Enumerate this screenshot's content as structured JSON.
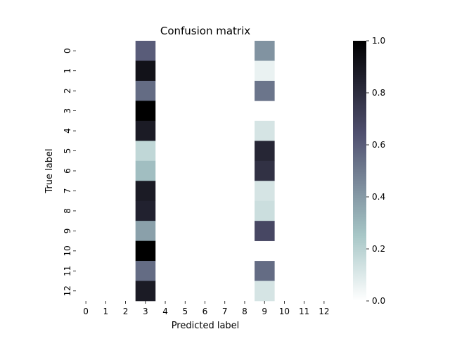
{
  "chart_data": {
    "type": "heatmap",
    "title": "Confusion matrix",
    "xlabel": "Predicted label",
    "ylabel": "True label",
    "x_tick_labels": [
      "0",
      "1",
      "2",
      "3",
      "4",
      "5",
      "6",
      "7",
      "8",
      "9",
      "10",
      "11",
      "12"
    ],
    "y_tick_labels": [
      "0",
      "1",
      "2",
      "3",
      "4",
      "5",
      "6",
      "7",
      "8",
      "9",
      "10",
      "11",
      "12"
    ],
    "values": [
      [
        0,
        0,
        0,
        0.6,
        0,
        0,
        0,
        0,
        0,
        0.42,
        0,
        0,
        0
      ],
      [
        0,
        0,
        0,
        0.92,
        0,
        0,
        0,
        0,
        0,
        0.06,
        0,
        0,
        0
      ],
      [
        0,
        0,
        0,
        0.55,
        0,
        0,
        0,
        0,
        0,
        0.52,
        0,
        0,
        0
      ],
      [
        0,
        0,
        0,
        1.0,
        0,
        0,
        0,
        0,
        0,
        0,
        0,
        0,
        0
      ],
      [
        0,
        0,
        0,
        0.88,
        0,
        0,
        0,
        0,
        0,
        0.12,
        0,
        0,
        0
      ],
      [
        0,
        0,
        0,
        0.18,
        0,
        0,
        0,
        0,
        0,
        0.83,
        0,
        0,
        0
      ],
      [
        0,
        0,
        0,
        0.28,
        0,
        0,
        0,
        0,
        0,
        0.78,
        0,
        0,
        0
      ],
      [
        0,
        0,
        0,
        0.88,
        0,
        0,
        0,
        0,
        0,
        0.12,
        0,
        0,
        0
      ],
      [
        0,
        0,
        0,
        0.85,
        0,
        0,
        0,
        0,
        0,
        0.15,
        0,
        0,
        0
      ],
      [
        0,
        0,
        0,
        0.38,
        0,
        0,
        0,
        0,
        0,
        0.68,
        0,
        0,
        0
      ],
      [
        0,
        0,
        0,
        1.0,
        0,
        0,
        0,
        0,
        0,
        0,
        0,
        0,
        0
      ],
      [
        0,
        0,
        0,
        0.55,
        0,
        0,
        0,
        0,
        0,
        0.55,
        0,
        0,
        0
      ],
      [
        0,
        0,
        0,
        0.88,
        0,
        0,
        0,
        0,
        0,
        0.12,
        0,
        0,
        0
      ]
    ],
    "colormap": "bone_r",
    "colorbar": {
      "range": [
        0.0,
        1.0
      ],
      "tick_values": [
        0.0,
        0.2,
        0.4,
        0.6,
        0.8,
        1.0
      ],
      "tick_labels": [
        "0.0",
        "0.2",
        "0.4",
        "0.6",
        "0.8",
        "1.0"
      ]
    }
  }
}
